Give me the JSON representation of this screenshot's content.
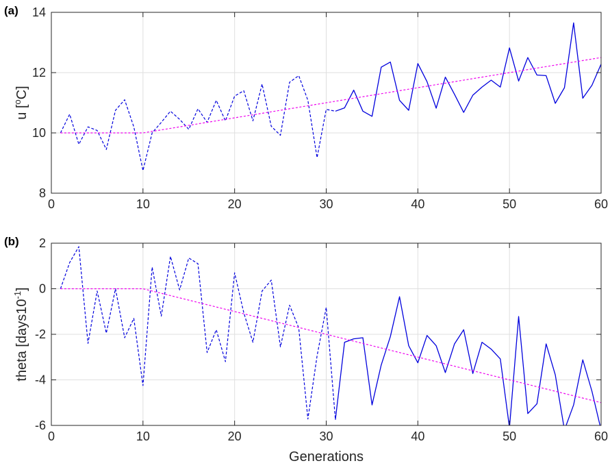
{
  "chart_data": [
    {
      "type": "line",
      "panel_label": "(a)",
      "xlabel": "",
      "ylabel_main": "u [",
      "ylabel_sup": "o",
      "ylabel_tail": "C]",
      "xlim": [
        0,
        60
      ],
      "ylim": [
        8,
        14
      ],
      "xticks": [
        0,
        10,
        20,
        30,
        40,
        50,
        60
      ],
      "yticks": [
        8,
        10,
        12,
        14
      ],
      "grid": true,
      "colors": {
        "data": "#0000dd",
        "trend": "#ee00ee"
      },
      "series": [
        {
          "style": "dashed",
          "x": [
            1,
            2,
            3,
            4,
            5,
            6,
            7,
            8,
            9,
            10,
            11,
            12,
            13,
            14,
            15,
            16,
            17,
            18,
            19,
            20,
            21,
            22,
            23,
            24,
            25,
            26,
            27,
            28,
            29,
            30,
            31
          ],
          "y": [
            10.0,
            10.62,
            9.62,
            10.2,
            10.08,
            9.45,
            10.75,
            11.1,
            10.2,
            8.75,
            10.0,
            10.35,
            10.72,
            10.45,
            10.12,
            10.8,
            10.35,
            11.08,
            10.4,
            11.22,
            11.4,
            10.4,
            11.62,
            10.22,
            9.92,
            11.68,
            11.9,
            11.08,
            9.18,
            10.78,
            10.72
          ]
        },
        {
          "style": "solid",
          "x": [
            31,
            32,
            33,
            34,
            35,
            36,
            37,
            38,
            39,
            40,
            41,
            42,
            43,
            44,
            45,
            46,
            47,
            48,
            49,
            50,
            51,
            52,
            53,
            54,
            55,
            56,
            57,
            58,
            59,
            60
          ],
          "y": [
            10.72,
            10.83,
            11.42,
            10.72,
            10.55,
            12.18,
            12.35,
            11.08,
            10.75,
            12.3,
            11.7,
            10.82,
            11.85,
            11.28,
            10.68,
            11.25,
            11.52,
            11.75,
            11.52,
            12.82,
            11.72,
            12.5,
            11.92,
            11.9,
            10.98,
            11.5,
            13.65,
            11.15,
            11.58,
            12.28
          ]
        },
        {
          "style": "dashed-trend",
          "x": [
            1,
            10,
            60
          ],
          "y": [
            10.0,
            10.0,
            12.5
          ]
        }
      ]
    },
    {
      "type": "line",
      "panel_label": "(b)",
      "xlabel": "Generations",
      "ylabel_main": "theta [days10",
      "ylabel_sup": "-1",
      "ylabel_tail": "]",
      "xlim": [
        0,
        60
      ],
      "ylim": [
        -6,
        2
      ],
      "xticks": [
        0,
        10,
        20,
        30,
        40,
        50,
        60
      ],
      "yticks": [
        -6,
        -4,
        -2,
        0,
        2
      ],
      "grid": true,
      "colors": {
        "data": "#0000dd",
        "trend": "#ee00ee"
      },
      "series": [
        {
          "style": "dashed",
          "x": [
            1,
            2,
            3,
            4,
            5,
            6,
            7,
            8,
            9,
            10,
            11,
            12,
            13,
            14,
            15,
            16,
            17,
            18,
            19,
            20,
            21,
            22,
            23,
            24,
            25,
            26,
            27,
            28,
            29,
            30,
            31
          ],
          "y": [
            0.0,
            1.15,
            1.85,
            -2.4,
            -0.1,
            -1.95,
            0.0,
            -2.15,
            -1.3,
            -4.25,
            0.95,
            -1.2,
            1.42,
            -0.05,
            1.35,
            1.1,
            -2.8,
            -1.8,
            -3.2,
            0.7,
            -1.05,
            -2.35,
            -0.1,
            0.38,
            -2.55,
            -0.72,
            -1.72,
            -5.72,
            -2.95,
            -0.82,
            -5.75
          ]
        },
        {
          "style": "solid",
          "x": [
            31,
            32,
            33,
            34,
            35,
            36,
            37,
            38,
            39,
            40,
            41,
            42,
            43,
            44,
            45,
            46,
            47,
            48,
            49,
            50,
            51,
            52,
            53,
            54,
            55,
            56,
            57,
            58,
            59,
            60
          ],
          "y": [
            -5.75,
            -2.35,
            -2.2,
            -2.15,
            -5.1,
            -3.35,
            -2.1,
            -0.35,
            -2.5,
            -3.25,
            -2.05,
            -2.5,
            -3.68,
            -2.42,
            -1.8,
            -3.72,
            -2.35,
            -2.65,
            -3.08,
            -6.1,
            -1.22,
            -5.48,
            -5.05,
            -2.42,
            -3.78,
            -6.2,
            -5.1,
            -3.12,
            -4.5,
            -6.2
          ]
        },
        {
          "style": "dashed-trend",
          "x": [
            1,
            10,
            60
          ],
          "y": [
            0.0,
            0.0,
            -5.0
          ]
        }
      ]
    }
  ]
}
